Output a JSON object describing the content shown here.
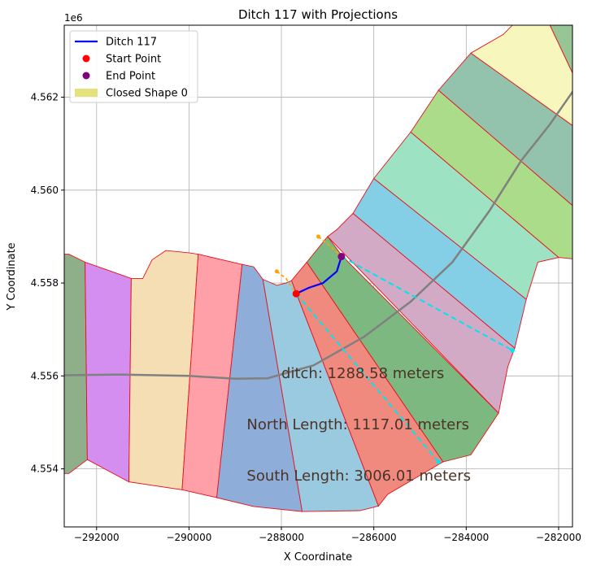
{
  "chart_data": {
    "type": "map-plot",
    "title": "Ditch 117 with Projections",
    "xlabel": "X Coordinate",
    "ylabel": "Y Coordinate",
    "y_offset_label": "1e6",
    "xlim": [
      -292700,
      -281700
    ],
    "ylim": [
      4552750,
      4563550
    ],
    "grid": true,
    "x_ticks": [
      {
        "value": -292000,
        "label": "−292000"
      },
      {
        "value": -290000,
        "label": "−290000"
      },
      {
        "value": -288000,
        "label": "−288000"
      },
      {
        "value": -286000,
        "label": "−286000"
      },
      {
        "value": -284000,
        "label": "−284000"
      },
      {
        "value": -282000,
        "label": "−282000"
      }
    ],
    "y_ticks": [
      {
        "value": 4554000,
        "label": "4.554"
      },
      {
        "value": 4556000,
        "label": "4.556"
      },
      {
        "value": 4558000,
        "label": "4.558"
      },
      {
        "value": 4560000,
        "label": "4.560"
      },
      {
        "value": 4562000,
        "label": "4.562"
      }
    ],
    "legend": {
      "position": "upper-left",
      "entries": [
        {
          "label": "Ditch 117",
          "kind": "line",
          "color": "#0000ff"
        },
        {
          "label": "Start Point",
          "kind": "marker",
          "color": "#ff0000"
        },
        {
          "label": "End Point",
          "kind": "marker",
          "color": "#800080"
        },
        {
          "label": "Closed Shape 0",
          "kind": "patch",
          "color": "#d8d645"
        }
      ]
    },
    "polygons": [
      {
        "color": "#8faf8b",
        "points": [
          [
            -293000,
            4558620
          ],
          [
            -292600,
            4558620
          ],
          [
            -292250,
            4558450
          ],
          [
            -292200,
            4554200
          ],
          [
            -292600,
            4553900
          ],
          [
            -293000,
            4553900
          ]
        ]
      },
      {
        "color": "#d38eef",
        "points": [
          [
            -292250,
            4558450
          ],
          [
            -291250,
            4558100
          ],
          [
            -291300,
            4553720
          ],
          [
            -292200,
            4554200
          ]
        ]
      },
      {
        "color": "#f5deb3",
        "points": [
          [
            -291250,
            4558100
          ],
          [
            -291000,
            4558100
          ],
          [
            -290800,
            4558500
          ],
          [
            -290500,
            4558700
          ],
          [
            -290000,
            4558650
          ],
          [
            -289800,
            4558620
          ],
          [
            -290150,
            4553550
          ],
          [
            -291300,
            4553720
          ]
        ]
      },
      {
        "color": "#ffa0a9",
        "points": [
          [
            -289800,
            4558620
          ],
          [
            -288850,
            4558400
          ],
          [
            -289400,
            4553380
          ],
          [
            -290150,
            4553550
          ]
        ]
      },
      {
        "color": "#8eadd9",
        "points": [
          [
            -288850,
            4558400
          ],
          [
            -288600,
            4558350
          ],
          [
            -288400,
            4558080
          ],
          [
            -287550,
            4553080
          ],
          [
            -288600,
            4553190
          ],
          [
            -289400,
            4553380
          ]
        ]
      },
      {
        "color": "#99cae0",
        "points": [
          [
            -288400,
            4558080
          ],
          [
            -288100,
            4557950
          ],
          [
            -287900,
            4558000
          ],
          [
            -287780,
            4558050
          ],
          [
            -285900,
            4553200
          ],
          [
            -286300,
            4553100
          ],
          [
            -287550,
            4553080
          ]
        ]
      },
      {
        "color": "#f08a7e",
        "points": [
          [
            -287780,
            4558050
          ],
          [
            -287450,
            4558450
          ],
          [
            -284500,
            4554150
          ],
          [
            -285700,
            4553450
          ],
          [
            -285900,
            4553200
          ]
        ]
      },
      {
        "color": "#7cb87f",
        "points": [
          [
            -287450,
            4558450
          ],
          [
            -287000,
            4559000
          ],
          [
            -286700,
            4558600
          ],
          [
            -283300,
            4555200
          ],
          [
            -283900,
            4554300
          ],
          [
            -284500,
            4554150
          ]
        ]
      },
      {
        "color": "#d3aac6",
        "points": [
          [
            -287000,
            4559000
          ],
          [
            -286800,
            4559150
          ],
          [
            -286450,
            4559500
          ],
          [
            -282950,
            4556600
          ],
          [
            -283100,
            4556200
          ],
          [
            -283300,
            4555200
          ]
        ]
      },
      {
        "color": "#84cfe5",
        "points": [
          [
            -286450,
            4559500
          ],
          [
            -286000,
            4560250
          ],
          [
            -282700,
            4557650
          ],
          [
            -282950,
            4556600
          ]
        ]
      },
      {
        "color": "#9ee2c4",
        "points": [
          [
            -286000,
            4560250
          ],
          [
            -285200,
            4561250
          ],
          [
            -282000,
            4558550
          ],
          [
            -282450,
            4558450
          ],
          [
            -282700,
            4557650
          ]
        ]
      },
      {
        "color": "#abdc8a",
        "points": [
          [
            -285200,
            4561250
          ],
          [
            -284600,
            4562150
          ],
          [
            -281500,
            4559500
          ],
          [
            -281500,
            4558500
          ],
          [
            -282000,
            4558550
          ]
        ]
      },
      {
        "color": "#93c2ad",
        "points": [
          [
            -284600,
            4562150
          ],
          [
            -283900,
            4562950
          ],
          [
            -281500,
            4561250
          ],
          [
            -281500,
            4559500
          ]
        ]
      },
      {
        "color": "#f7f7bd",
        "points": [
          [
            -283900,
            4562950
          ],
          [
            -283200,
            4563350
          ],
          [
            -282950,
            4563600
          ],
          [
            -282400,
            4564000
          ],
          [
            -281500,
            4562100
          ],
          [
            -281500,
            4561250
          ]
        ]
      },
      {
        "color": "#98c595",
        "points": [
          [
            -282400,
            4564000
          ],
          [
            -282950,
            4563600
          ],
          [
            -282400,
            4564100
          ],
          [
            -281500,
            4564100
          ],
          [
            -281500,
            4562100
          ]
        ]
      }
    ],
    "centerline": [
      [
        -293000,
        4556010
      ],
      [
        -291500,
        4556030
      ],
      [
        -290000,
        4556000
      ],
      [
        -289000,
        4555940
      ],
      [
        -288300,
        4555950
      ],
      [
        -287300,
        4556230
      ],
      [
        -286200,
        4556850
      ],
      [
        -285200,
        4557600
      ],
      [
        -284300,
        4558450
      ],
      [
        -283500,
        4559550
      ],
      [
        -282800,
        4560650
      ],
      [
        -282200,
        4561400
      ],
      [
        -281500,
        4562400
      ]
    ],
    "ditch_117": [
      [
        -287680,
        4557770
      ],
      [
        -287400,
        4557900
      ],
      [
        -287100,
        4558000
      ],
      [
        -286800,
        4558250
      ],
      [
        -286700,
        4558570
      ]
    ],
    "start_point": [
      -287680,
      4557770
    ],
    "end_point": [
      -286700,
      4558570
    ],
    "orange_segments": [
      [
        [
          -288100,
          4558250
        ],
        [
          -287900,
          4558100
        ],
        [
          -287680,
          4557770
        ]
      ],
      [
        [
          -287200,
          4559000
        ],
        [
          -286950,
          4558800
        ],
        [
          -286700,
          4558570
        ]
      ]
    ],
    "projections": [
      {
        "from": [
          -287680,
          4557770
        ],
        "to": [
          -284600,
          4554150
        ]
      },
      {
        "from": [
          -286700,
          4558570
        ],
        "to": [
          -283000,
          4556550
        ]
      }
    ],
    "annotations": [
      {
        "text": "ditch: 1288.58 meters",
        "x": -288000,
        "y": 4555950
      },
      {
        "text": "North Length: 1117.01 meters",
        "x": -288750,
        "y": 4554850
      },
      {
        "text": "South Length: 3006.01 meters",
        "x": -288750,
        "y": 4553750
      }
    ]
  }
}
